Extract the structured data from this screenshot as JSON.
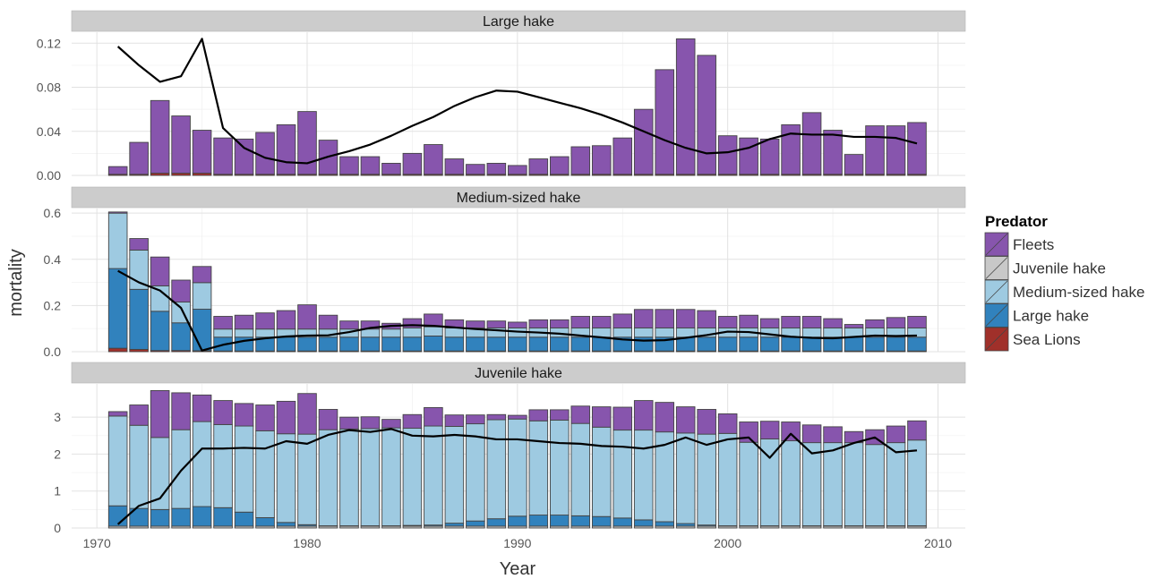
{
  "chart_data": {
    "type": "bar",
    "stacked": true,
    "ylabel": "mortality",
    "xlabel": "Year",
    "x_ticks": [
      1970,
      1980,
      1990,
      2000,
      2010
    ],
    "years": [
      1971,
      1972,
      1973,
      1974,
      1975,
      1976,
      1977,
      1978,
      1979,
      1980,
      1981,
      1982,
      1983,
      1984,
      1985,
      1986,
      1987,
      1988,
      1989,
      1990,
      1991,
      1992,
      1993,
      1994,
      1995,
      1996,
      1997,
      1998,
      1999,
      2000,
      2001,
      2002,
      2003,
      2004,
      2005,
      2006,
      2007,
      2008,
      2009
    ],
    "legend": {
      "title": "Predator",
      "entries": [
        {
          "label": "Fleets",
          "color": "#8755ad"
        },
        {
          "label": "Juvenile hake",
          "color": "#c8c8c8"
        },
        {
          "label": "Medium-sized hake",
          "color": "#9ecae1"
        },
        {
          "label": "Large hake",
          "color": "#3182bd"
        },
        {
          "label": "Sea Lions",
          "color": "#a0302a"
        }
      ]
    },
    "panels": [
      {
        "title": "Large hake",
        "ylim": [
          0,
          0.13
        ],
        "yticks": [
          0,
          0.04,
          0.08,
          0.12
        ],
        "ytick_labels": [
          "0.00",
          "0.04",
          "0.08",
          "0.12"
        ],
        "series": [
          {
            "name": "Sea Lions",
            "values": [
              0.001,
              0.001,
              0.002,
              0.002,
              0.002,
              0.001,
              0.001,
              0.001,
              0.001,
              0.001,
              0.001,
              0.001,
              0.001,
              0.001,
              0.001,
              0.001,
              0.001,
              0.001,
              0.001,
              0.001,
              0.001,
              0.001,
              0.001,
              0.001,
              0.001,
              0.001,
              0.001,
              0.001,
              0.001,
              0.001,
              0.001,
              0.001,
              0.001,
              0.001,
              0.001,
              0.001,
              0.001,
              0.001,
              0.001
            ]
          },
          {
            "name": "Fleets",
            "values": [
              0.007,
              0.029,
              0.066,
              0.052,
              0.039,
              0.033,
              0.032,
              0.038,
              0.045,
              0.057,
              0.031,
              0.016,
              0.016,
              0.01,
              0.019,
              0.027,
              0.014,
              0.009,
              0.01,
              0.008,
              0.014,
              0.016,
              0.025,
              0.026,
              0.033,
              0.059,
              0.095,
              0.123,
              0.108,
              0.035,
              0.033,
              0.032,
              0.045,
              0.056,
              0.04,
              0.018,
              0.044,
              0.044,
              0.047
            ]
          }
        ],
        "line": [
          0.117,
          0.1,
          0.085,
          0.09,
          0.124,
          0.043,
          0.025,
          0.016,
          0.012,
          0.011,
          0.017,
          0.022,
          0.028,
          0.036,
          0.045,
          0.053,
          0.063,
          0.071,
          0.077,
          0.076,
          0.071,
          0.066,
          0.061,
          0.055,
          0.048,
          0.04,
          0.032,
          0.025,
          0.02,
          0.021,
          0.025,
          0.033,
          0.038,
          0.037,
          0.037,
          0.035,
          0.035,
          0.034,
          0.029
        ]
      },
      {
        "title": "Medium-sized hake",
        "ylim": [
          0,
          0.62
        ],
        "yticks": [
          0,
          0.2,
          0.4,
          0.6
        ],
        "ytick_labels": [
          "0.0",
          "0.2",
          "0.4",
          "0.6"
        ],
        "series": [
          {
            "name": "Sea Lions",
            "values": [
              0.015,
              0.01,
              0.005,
              0.005,
              0.004,
              0.003,
              0.003,
              0.003,
              0.003,
              0.003,
              0.003,
              0.003,
              0.003,
              0.003,
              0.003,
              0.003,
              0.003,
              0.003,
              0.003,
              0.003,
              0.003,
              0.003,
              0.003,
              0.003,
              0.003,
              0.003,
              0.003,
              0.003,
              0.003,
              0.003,
              0.003,
              0.003,
              0.003,
              0.003,
              0.003,
              0.003,
              0.003,
              0.003,
              0.003
            ]
          },
          {
            "name": "Large hake",
            "values": [
              0.345,
              0.26,
              0.17,
              0.12,
              0.18,
              0.06,
              0.06,
              0.06,
              0.06,
              0.06,
              0.06,
              0.06,
              0.06,
              0.06,
              0.06,
              0.065,
              0.06,
              0.06,
              0.06,
              0.06,
              0.06,
              0.06,
              0.06,
              0.06,
              0.06,
              0.06,
              0.06,
              0.06,
              0.06,
              0.06,
              0.06,
              0.06,
              0.06,
              0.06,
              0.06,
              0.06,
              0.06,
              0.06,
              0.06
            ]
          },
          {
            "name": "Medium-sized hake",
            "values": [
              0.24,
              0.17,
              0.11,
              0.09,
              0.115,
              0.035,
              0.035,
              0.035,
              0.035,
              0.035,
              0.035,
              0.035,
              0.035,
              0.035,
              0.04,
              0.04,
              0.04,
              0.04,
              0.04,
              0.04,
              0.04,
              0.04,
              0.04,
              0.04,
              0.04,
              0.04,
              0.04,
              0.04,
              0.04,
              0.04,
              0.04,
              0.04,
              0.04,
              0.04,
              0.04,
              0.04,
              0.04,
              0.04,
              0.04
            ]
          },
          {
            "name": "Fleets",
            "values": [
              0.005,
              0.05,
              0.125,
              0.095,
              0.07,
              0.055,
              0.06,
              0.07,
              0.08,
              0.105,
              0.06,
              0.035,
              0.035,
              0.025,
              0.04,
              0.055,
              0.035,
              0.03,
              0.03,
              0.025,
              0.035,
              0.035,
              0.05,
              0.05,
              0.06,
              0.08,
              0.08,
              0.08,
              0.075,
              0.05,
              0.055,
              0.04,
              0.05,
              0.05,
              0.04,
              0.015,
              0.035,
              0.045,
              0.05
            ]
          }
        ],
        "line": [
          0.35,
          0.3,
          0.265,
          0.19,
          0.005,
          0.03,
          0.047,
          0.058,
          0.066,
          0.07,
          0.071,
          0.085,
          0.103,
          0.112,
          0.115,
          0.112,
          0.105,
          0.098,
          0.093,
          0.087,
          0.083,
          0.078,
          0.07,
          0.062,
          0.053,
          0.048,
          0.05,
          0.06,
          0.072,
          0.087,
          0.085,
          0.075,
          0.065,
          0.06,
          0.058,
          0.064,
          0.07,
          0.068,
          0.07
        ]
      },
      {
        "title": "Juvenile hake",
        "ylim": [
          0,
          3.9
        ],
        "yticks": [
          0,
          1,
          2,
          3
        ],
        "ytick_labels": [
          "0",
          "1",
          "2",
          "3"
        ],
        "series": [
          {
            "name": "Juvenile hake",
            "values": [
              0.05,
              0.05,
              0.05,
              0.05,
              0.05,
              0.05,
              0.05,
              0.05,
              0.05,
              0.05,
              0.05,
              0.05,
              0.05,
              0.05,
              0.05,
              0.05,
              0.05,
              0.05,
              0.05,
              0.05,
              0.05,
              0.05,
              0.05,
              0.05,
              0.05,
              0.05,
              0.05,
              0.05,
              0.05,
              0.05,
              0.05,
              0.05,
              0.05,
              0.05,
              0.05,
              0.05,
              0.05,
              0.05,
              0.05
            ]
          },
          {
            "name": "Large hake",
            "values": [
              0.55,
              0.48,
              0.45,
              0.48,
              0.53,
              0.5,
              0.38,
              0.23,
              0.1,
              0.04,
              0.01,
              0.01,
              0.01,
              0.01,
              0.02,
              0.03,
              0.08,
              0.14,
              0.2,
              0.27,
              0.3,
              0.3,
              0.28,
              0.26,
              0.22,
              0.17,
              0.12,
              0.07,
              0.03,
              0.01,
              0.01,
              0.01,
              0.01,
              0.01,
              0.01,
              0.01,
              0.01,
              0.01,
              0.01
            ]
          },
          {
            "name": "Medium-sized hake",
            "values": [
              2.43,
              2.25,
              1.95,
              2.13,
              2.3,
              2.25,
              2.33,
              2.35,
              2.4,
              2.45,
              2.6,
              2.62,
              2.63,
              2.65,
              2.63,
              2.68,
              2.62,
              2.63,
              2.68,
              2.63,
              2.55,
              2.57,
              2.5,
              2.42,
              2.38,
              2.43,
              2.43,
              2.45,
              2.46,
              2.5,
              2.26,
              2.35,
              2.3,
              2.25,
              2.25,
              2.25,
              2.2,
              2.25,
              2.32
            ]
          },
          {
            "name": "Fleets",
            "values": [
              0.12,
              0.55,
              1.27,
              1.0,
              0.72,
              0.65,
              0.61,
              0.7,
              0.88,
              1.1,
              0.55,
              0.32,
              0.32,
              0.23,
              0.37,
              0.5,
              0.31,
              0.24,
              0.14,
              0.1,
              0.3,
              0.28,
              0.47,
              0.55,
              0.62,
              0.8,
              0.8,
              0.71,
              0.67,
              0.53,
              0.55,
              0.48,
              0.51,
              0.48,
              0.43,
              0.3,
              0.4,
              0.45,
              0.52
            ]
          }
        ],
        "line": [
          0.1,
          0.6,
          0.8,
          1.55,
          2.15,
          2.15,
          2.17,
          2.15,
          2.35,
          2.28,
          2.52,
          2.65,
          2.6,
          2.68,
          2.5,
          2.48,
          2.52,
          2.48,
          2.4,
          2.4,
          2.35,
          2.3,
          2.28,
          2.22,
          2.2,
          2.15,
          2.25,
          2.45,
          2.25,
          2.4,
          2.45,
          1.9,
          2.55,
          2.02,
          2.1,
          2.3,
          2.45,
          2.05,
          2.1
        ]
      }
    ]
  }
}
